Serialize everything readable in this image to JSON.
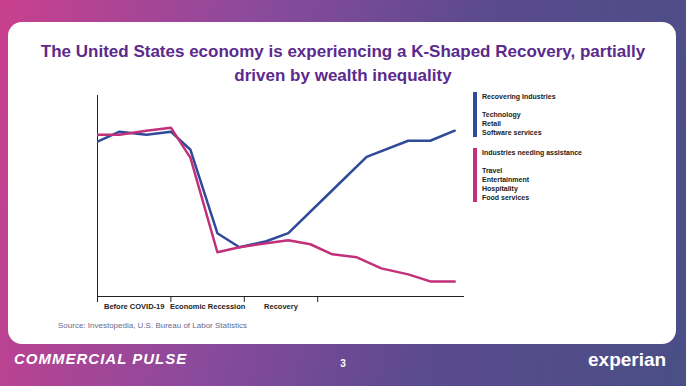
{
  "chart_data": {
    "type": "line",
    "title": "The United States economy is experiencing a K-Shaped Recovery, partially driven by wealth inequality",
    "source": "Source: Investopedia, U.S. Bureau of Labor Statistics",
    "xlim": [
      0,
      15
    ],
    "ylim": [
      0,
      100
    ],
    "tick_labels": false,
    "grid": false,
    "legend": "right",
    "x_sections": [
      {
        "label": "Before COVID-19",
        "start": 0,
        "end": 3
      },
      {
        "label": "Economic Recession",
        "start": 3,
        "end": 6
      },
      {
        "label": "Recovery",
        "start": 6,
        "end": 9
      }
    ],
    "series": [
      {
        "name": "Recovering Industries",
        "color": "#2e4a98",
        "items": [
          "Technology",
          "Retail",
          "Software services"
        ],
        "x": [
          0,
          0.9,
          2,
          3,
          3.8,
          4.9,
          5.8,
          6.9,
          7.8,
          9.4,
          11,
          12.7,
          13.6,
          14.6
        ],
        "values": [
          77,
          82,
          80.5,
          82,
          73,
          31.5,
          24.5,
          27.5,
          31.5,
          50.5,
          69.5,
          77.5,
          77.5,
          82.5
        ]
      },
      {
        "name": "Industries needing assistance",
        "color": "#c2307a",
        "items": [
          "Travel",
          "Entertainment",
          "Hospitality",
          "Food services"
        ],
        "x": [
          0,
          0.9,
          2,
          3,
          3.8,
          4.9,
          5.8,
          6.9,
          7.8,
          8.7,
          9.6,
          10.6,
          11.6,
          12.7,
          13.6,
          14.6
        ],
        "values": [
          80.5,
          80.5,
          82.5,
          84,
          69,
          22,
          24.5,
          26.5,
          28,
          26,
          21,
          19.5,
          14,
          11,
          7.5,
          7.5
        ]
      }
    ]
  },
  "slide": {
    "footer": "COMMERCIAL PULSE",
    "page_number": 3,
    "brand": "experian"
  }
}
